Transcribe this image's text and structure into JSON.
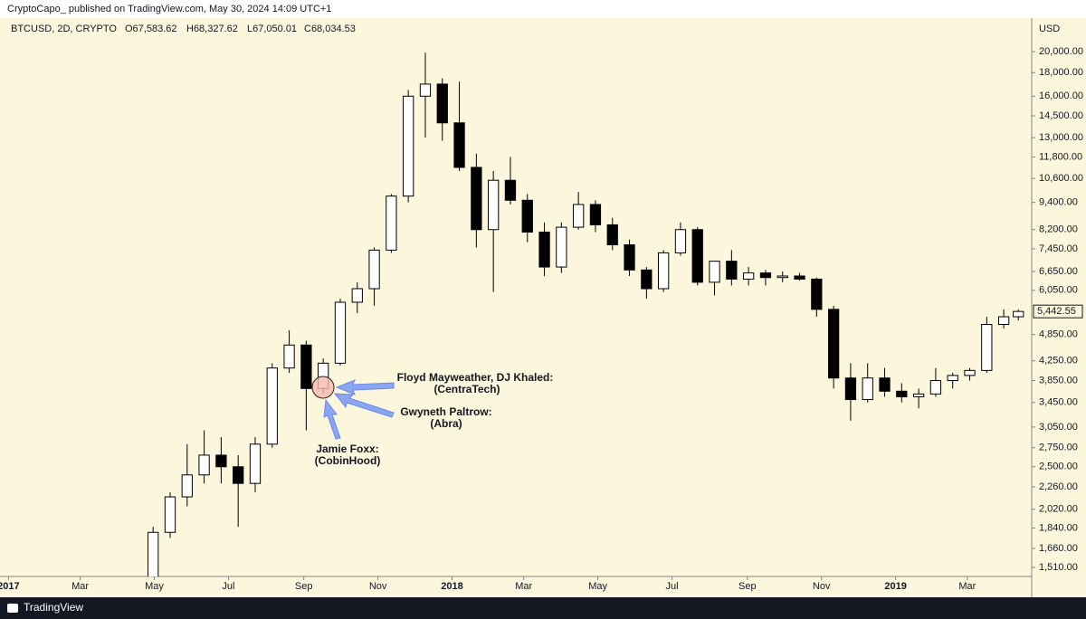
{
  "header": {
    "publisher": "CryptoCapo_ published on TradingView.com, May 30, 2024 14:09 UTC+1"
  },
  "footer": {
    "brand": "TradingView"
  },
  "chart_data": {
    "type": "candlestick",
    "symbol": "BTCUSD, 2D, CRYPTO",
    "ohlc_readout": [
      "O67,583.62",
      "H68,327.62",
      "L67,050.01",
      "C68,034.53"
    ],
    "currency": "USD",
    "log_scale": true,
    "colors": {
      "up": "#ffffff",
      "down": "#000000",
      "outline": "#000000"
    },
    "x": [
      119,
      133,
      147,
      161,
      175,
      189,
      203,
      217,
      231,
      245,
      259,
      273,
      287,
      301,
      315,
      329,
      343,
      357,
      371,
      385,
      399,
      413,
      427,
      441,
      455,
      469,
      483,
      497,
      511,
      525,
      539,
      553,
      567,
      581,
      595,
      609,
      623,
      637,
      651,
      665,
      679,
      693,
      707,
      721,
      735,
      749,
      763,
      777,
      791,
      805,
      819,
      831
    ],
    "open": [
      1350,
      1800,
      2150,
      2400,
      2650,
      2500,
      2300,
      2800,
      4100,
      4600,
      3700,
      4200,
      5700,
      6100,
      7400,
      9700,
      16000,
      17000,
      14000,
      11200,
      8200,
      10500,
      9500,
      8100,
      6800,
      8300,
      9300,
      8400,
      7600,
      6700,
      6100,
      7300,
      8200,
      6300,
      7000,
      6400,
      6600,
      6450,
      6500,
      6400,
      5500,
      3900,
      3500,
      3900,
      3650,
      3550,
      3600,
      3850,
      3950,
      4050,
      5100,
      5300
    ],
    "high": [
      1850,
      2200,
      2800,
      3000,
      2900,
      2650,
      2900,
      4200,
      4950,
      4700,
      4300,
      5800,
      6300,
      7500,
      9800,
      16500,
      19900,
      17500,
      17200,
      12000,
      11000,
      11800,
      9800,
      8500,
      8500,
      9900,
      9500,
      8700,
      7800,
      6800,
      7400,
      8500,
      8300,
      7000,
      7400,
      6800,
      6700,
      6650,
      6600,
      6450,
      5600,
      4200,
      4200,
      4100,
      3800,
      3700,
      4100,
      4000,
      4100,
      5300,
      5500,
      5500
    ],
    "low": [
      1350,
      1750,
      2050,
      2300,
      2300,
      1850,
      2200,
      2750,
      4000,
      3000,
      3600,
      4150,
      5400,
      5600,
      7300,
      9400,
      13000,
      12800,
      11000,
      7500,
      6000,
      9300,
      7700,
      6500,
      6600,
      8200,
      8100,
      7400,
      6500,
      5800,
      6000,
      7200,
      6200,
      5900,
      6200,
      6200,
      6200,
      6300,
      6350,
      5300,
      3700,
      3150,
      3450,
      3550,
      3450,
      3350,
      3550,
      3700,
      3850,
      4000,
      5000,
      5200
    ],
    "close": [
      1800,
      2150,
      2400,
      2650,
      2500,
      2300,
      2800,
      4100,
      4600,
      3700,
      4200,
      5700,
      6100,
      7400,
      9700,
      16000,
      17000,
      14000,
      11200,
      8200,
      10500,
      9500,
      8100,
      6800,
      8300,
      9300,
      8400,
      7600,
      6700,
      6100,
      7300,
      8200,
      6300,
      7000,
      6400,
      6600,
      6450,
      6500,
      6400,
      5500,
      3900,
      3500,
      3900,
      3650,
      3550,
      3600,
      3850,
      3950,
      4050,
      5100,
      5300,
      5442.55
    ],
    "last_price": {
      "value": 5442.55,
      "label": "5,442.55"
    },
    "xlim": [
      -7,
      842
    ],
    "xticks": [
      {
        "value": 0,
        "label": "2017"
      },
      {
        "value": 59,
        "label": "Mar"
      },
      {
        "value": 120,
        "label": "May"
      },
      {
        "value": 181,
        "label": "Jul"
      },
      {
        "value": 243,
        "label": "Sep"
      },
      {
        "value": 304,
        "label": "Nov"
      },
      {
        "value": 365,
        "label": "2018"
      },
      {
        "value": 424,
        "label": "Mar"
      },
      {
        "value": 485,
        "label": "May"
      },
      {
        "value": 546,
        "label": "Jul"
      },
      {
        "value": 608,
        "label": "Sep"
      },
      {
        "value": 669,
        "label": "Nov"
      },
      {
        "value": 730,
        "label": "2019"
      },
      {
        "value": 789,
        "label": "Mar"
      }
    ],
    "ylim": [
      1443,
      23660
    ],
    "yticks": [
      {
        "value": 1510,
        "label": "1,510.00"
      },
      {
        "value": 1660,
        "label": "1,660.00"
      },
      {
        "value": 1840,
        "label": "1,840.00"
      },
      {
        "value": 2020,
        "label": "2,020.00"
      },
      {
        "value": 2260,
        "label": "2,260.00"
      },
      {
        "value": 2500,
        "label": "2,500.00"
      },
      {
        "value": 2750,
        "label": "2,750.00"
      },
      {
        "value": 3050,
        "label": "3,050.00"
      },
      {
        "value": 3450,
        "label": "3,450.00"
      },
      {
        "value": 3850,
        "label": "3,850.00"
      },
      {
        "value": 4250,
        "label": "4,250.00"
      },
      {
        "value": 4850,
        "label": "4,850.00"
      },
      {
        "value": 6050,
        "label": "6,050.00"
      },
      {
        "value": 6650,
        "label": "6,650.00"
      },
      {
        "value": 7450,
        "label": "7,450.00"
      },
      {
        "value": 8200,
        "label": "8,200.00"
      },
      {
        "value": 9400,
        "label": "9,400.00"
      },
      {
        "value": 10600,
        "label": "10,600.00"
      },
      {
        "value": 11800,
        "label": "11,800.00"
      },
      {
        "value": 13000,
        "label": "13,000.00"
      },
      {
        "value": 14500,
        "label": "14,500.00"
      },
      {
        "value": 16000,
        "label": "16,000.00"
      },
      {
        "value": 18000,
        "label": "18,000.00"
      },
      {
        "value": 20000,
        "label": "20,000.00"
      }
    ],
    "annotations": [
      {
        "lines": [
          "Floyd Mayweather, DJ Khaled:",
          "(CentraTech)"
        ]
      },
      {
        "lines": [
          "Gwyneth Paltrow:",
          "(Abra)"
        ]
      },
      {
        "lines": [
          "Jamie Foxx:",
          "(CobinHood)"
        ]
      }
    ]
  }
}
